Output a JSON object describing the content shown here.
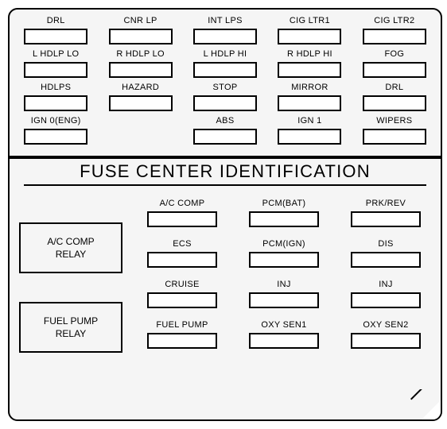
{
  "title": "FUSE CENTER IDENTIFICATION",
  "colors": {
    "panel_bg": "#f5f5f5",
    "border": "#000000",
    "fuse_bg": "#ffffff",
    "text": "#000000"
  },
  "typography": {
    "label_fontsize": 11,
    "title_fontsize": 22,
    "relay_fontsize": 12
  },
  "upper_rows": [
    [
      "DRL",
      "CNR LP",
      "INT LPS",
      "CIG LTR1",
      "CIG LTR2"
    ],
    [
      "L HDLP LO",
      "R HDLP LO",
      "L HDLP HI",
      "R HDLP HI",
      "FOG"
    ],
    [
      "HDLPS",
      "HAZARD",
      "STOP",
      "MIRROR",
      "DRL"
    ],
    [
      "IGN 0(ENG)",
      "",
      "ABS",
      "IGN 1",
      "WIPERS"
    ]
  ],
  "relays": [
    "A/C COMP\nRELAY",
    "FUEL PUMP\nRELAY"
  ],
  "lower_rows": [
    [
      "A/C COMP",
      "PCM(BAT)",
      "PRK/REV"
    ],
    [
      "ECS",
      "PCM(IGN)",
      "DIS"
    ],
    [
      "CRUISE",
      "INJ",
      "INJ"
    ],
    [
      "FUEL PUMP",
      "OXY SEN1",
      "OXY SEN2"
    ]
  ]
}
